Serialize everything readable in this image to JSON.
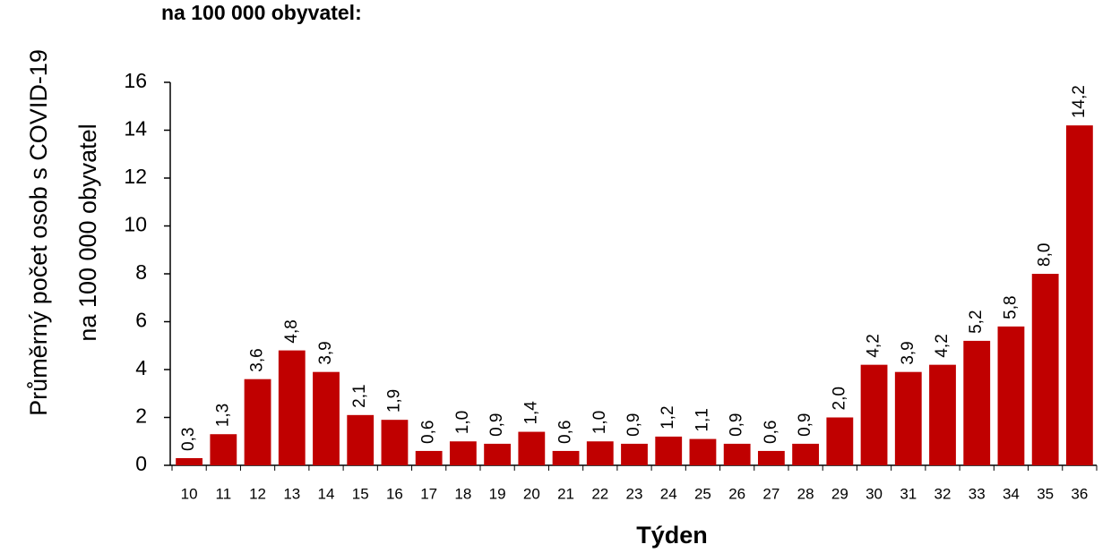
{
  "chart_data": {
    "type": "bar",
    "title": "na 100 000 obyvatel:",
    "ylabel": [
      "Průměrný počet osob s COVID-19",
      "na 100 000 obyvatel"
    ],
    "xlabel": "Týden",
    "categories": [
      "10",
      "11",
      "12",
      "13",
      "14",
      "15",
      "16",
      "17",
      "18",
      "19",
      "20",
      "21",
      "22",
      "23",
      "24",
      "25",
      "26",
      "27",
      "28",
      "29",
      "30",
      "31",
      "32",
      "33",
      "34",
      "35",
      "36"
    ],
    "values": [
      0.3,
      1.3,
      3.6,
      4.8,
      3.9,
      2.1,
      1.9,
      0.6,
      1.0,
      0.9,
      1.4,
      0.6,
      1.0,
      0.9,
      1.2,
      1.1,
      0.9,
      0.6,
      0.9,
      2.0,
      4.2,
      3.9,
      4.2,
      5.2,
      5.8,
      8.0,
      14.2
    ],
    "value_labels": [
      "0,3",
      "1,3",
      "3,6",
      "4,8",
      "3,9",
      "2,1",
      "1,9",
      "0,6",
      "1,0",
      "0,9",
      "1,4",
      "0,6",
      "1,0",
      "0,9",
      "1,2",
      "1,1",
      "0,9",
      "0,6",
      "0,9",
      "2,0",
      "4,2",
      "3,9",
      "4,2",
      "5,2",
      "5,8",
      "8,0",
      "14,2"
    ],
    "color": "#c00000",
    "ylim": [
      0,
      16
    ],
    "yticks": [
      0,
      2,
      4,
      6,
      8,
      10,
      12,
      14,
      16
    ],
    "grid": false
  }
}
